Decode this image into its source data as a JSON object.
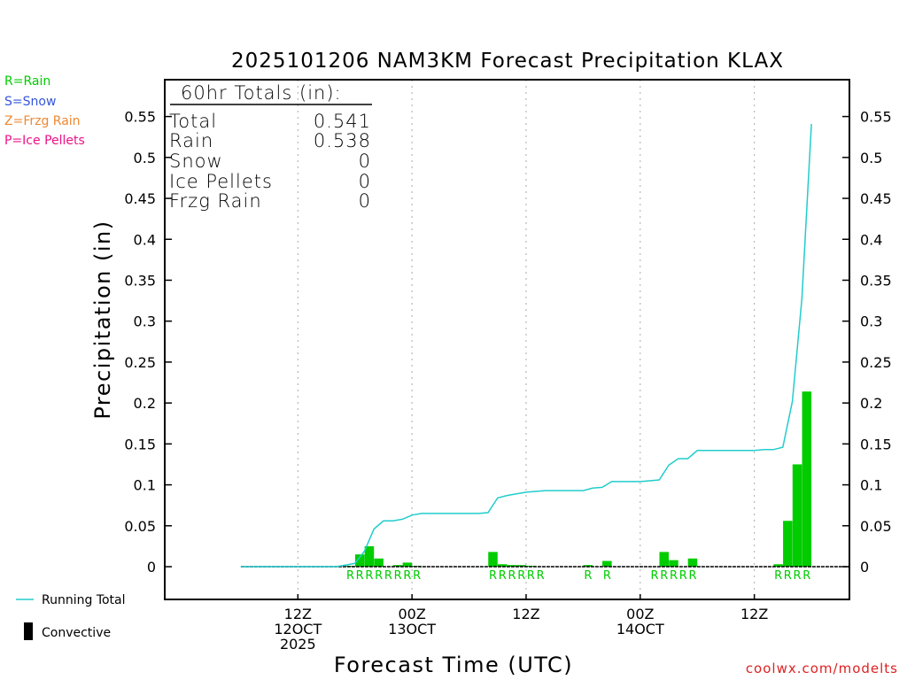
{
  "title": "2025101206 NAM3KM Forecast Precipitation KLAX",
  "ylabel": "Precipitation (in)",
  "xlabel": "Forecast Time (UTC)",
  "credit": "coolwx.com/modelts",
  "legend_types": [
    {
      "label": "R=Rain",
      "color": "#00cc00"
    },
    {
      "label": "S=Snow",
      "color": "#3355dd"
    },
    {
      "label": "Z=Frzg Rain",
      "color": "#ee8833"
    },
    {
      "label": "P=Ice Pellets",
      "color": "#ee1188"
    }
  ],
  "legend_series": {
    "running_total": "Running Total",
    "convective": "Convective"
  },
  "totals": {
    "header": "60hr Totals (in):",
    "rows": [
      {
        "label": "Total",
        "value": "0.541"
      },
      {
        "label": "Rain",
        "value": "0.538"
      },
      {
        "label": "Snow",
        "value": "0"
      },
      {
        "label": "Ice Pellets",
        "value": "0"
      },
      {
        "label": "Frzg Rain",
        "value": "0"
      }
    ]
  },
  "chart_data": {
    "type": "bar",
    "ylim": [
      -0.04,
      0.595
    ],
    "xlim": [
      -8,
      64
    ],
    "yticks": [
      0,
      0.05,
      0.1,
      0.15,
      0.2,
      0.25,
      0.3,
      0.35,
      0.4,
      0.45,
      0.5,
      0.55
    ],
    "ytick_labels": [
      "0",
      "0.05",
      "0.1",
      "0.15",
      "0.2",
      "0.25",
      "0.3",
      "0.35",
      "0.4",
      "0.45",
      "0.5",
      "0.55"
    ],
    "xticks": [
      {
        "x": 6,
        "lines": [
          "12Z",
          "12OCT",
          "2025"
        ]
      },
      {
        "x": 18,
        "lines": [
          "00Z",
          "13OCT"
        ]
      },
      {
        "x": 30,
        "lines": [
          "12Z"
        ]
      },
      {
        "x": 42,
        "lines": [
          "00Z",
          "14OCT"
        ]
      },
      {
        "x": 54,
        "lines": [
          "12Z"
        ]
      }
    ],
    "grid": "vertical dotted at tick positions",
    "colors": {
      "bars": "#00cc00",
      "line": "#22cccc",
      "axis": "#000000",
      "grid": "#aaaaaa"
    },
    "bars": [
      {
        "x": 12,
        "value": 0.001,
        "type": "R"
      },
      {
        "x": 13,
        "value": 0.015,
        "type": "R"
      },
      {
        "x": 14,
        "value": 0.025,
        "type": "R"
      },
      {
        "x": 15,
        "value": 0.01,
        "type": "R"
      },
      {
        "x": 16,
        "value": 0.0,
        "type": "R"
      },
      {
        "x": 17,
        "value": 0.002,
        "type": "R"
      },
      {
        "x": 18,
        "value": 0.005,
        "type": "R"
      },
      {
        "x": 19,
        "value": 0.001,
        "type": "R"
      },
      {
        "x": 27,
        "value": 0.018,
        "type": "R"
      },
      {
        "x": 28,
        "value": 0.003,
        "type": "R"
      },
      {
        "x": 29,
        "value": 0.002,
        "type": "R"
      },
      {
        "x": 30,
        "value": 0.002,
        "type": "R"
      },
      {
        "x": 31,
        "value": 0.001,
        "type": "R"
      },
      {
        "x": 32,
        "value": 0.0,
        "type": "R"
      },
      {
        "x": 37,
        "value": 0.002,
        "type": "R"
      },
      {
        "x": 39,
        "value": 0.007,
        "type": "R"
      },
      {
        "x": 44,
        "value": 0.0,
        "type": "R"
      },
      {
        "x": 45,
        "value": 0.018,
        "type": "R"
      },
      {
        "x": 46,
        "value": 0.008,
        "type": "R"
      },
      {
        "x": 47,
        "value": 0.0,
        "type": "R"
      },
      {
        "x": 48,
        "value": 0.01,
        "type": "R"
      },
      {
        "x": 57,
        "value": 0.003,
        "type": "R"
      },
      {
        "x": 58,
        "value": 0.056,
        "type": "R"
      },
      {
        "x": 59,
        "value": 0.125,
        "type": "R"
      },
      {
        "x": 60,
        "value": 0.214,
        "type": "R"
      }
    ],
    "running_total": {
      "x": [
        0,
        1,
        2,
        3,
        4,
        5,
        6,
        7,
        8,
        9,
        10,
        11,
        12,
        13,
        14,
        15,
        16,
        17,
        18,
        19,
        20,
        21,
        22,
        23,
        24,
        25,
        26,
        27,
        28,
        29,
        30,
        31,
        32,
        33,
        34,
        35,
        36,
        37,
        38,
        39,
        40,
        41,
        42,
        43,
        44,
        45,
        46,
        47,
        48,
        49,
        50,
        51,
        52,
        53,
        54,
        55,
        56,
        57,
        58,
        59,
        60
      ],
      "values": [
        0,
        0,
        0,
        0,
        0,
        0,
        0,
        0,
        0,
        0,
        0,
        0.002,
        0.004,
        0.019,
        0.046,
        0.056,
        0.056,
        0.058,
        0.063,
        0.065,
        0.065,
        0.065,
        0.065,
        0.065,
        0.065,
        0.065,
        0.066,
        0.084,
        0.087,
        0.089,
        0.091,
        0.092,
        0.093,
        0.093,
        0.093,
        0.093,
        0.093,
        0.096,
        0.097,
        0.104,
        0.104,
        0.104,
        0.104,
        0.105,
        0.106,
        0.124,
        0.132,
        0.132,
        0.142,
        0.142,
        0.142,
        0.142,
        0.142,
        0.142,
        0.142,
        0.143,
        0.143,
        0.146,
        0.202,
        0.327,
        0.541
      ]
    }
  }
}
